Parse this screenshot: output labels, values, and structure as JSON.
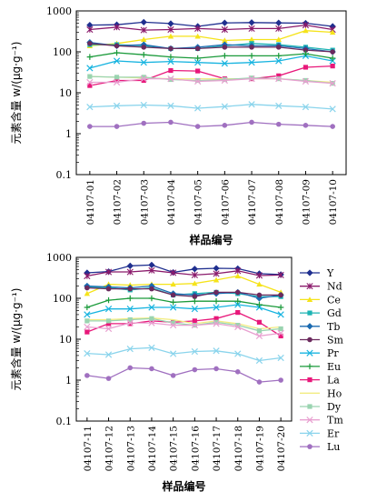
{
  "chart_data": [
    {
      "type": "line",
      "ylabel": "元素含量 w/(μg·g⁻¹)",
      "xlabel": "样品编号",
      "y_scale": "log",
      "ylim": [
        0.1,
        1000
      ],
      "yticks": [
        "0.1",
        "1",
        "10",
        "100",
        "1000"
      ],
      "categories": [
        "04107-01",
        "04107-02",
        "04107-03",
        "04107-04",
        "04107-05",
        "04107-06",
        "04107-07",
        "04107-08",
        "04107-09",
        "04107-10"
      ],
      "series": [
        {
          "name": "Y",
          "color": "#1f2f8f",
          "marker": "diamond",
          "values": [
            450,
            460,
            530,
            490,
            420,
            510,
            520,
            510,
            500,
            420
          ]
        },
        {
          "name": "Nd",
          "color": "#8a1a6b",
          "marker": "star",
          "values": [
            350,
            400,
            340,
            350,
            370,
            350,
            370,
            370,
            450,
            350
          ]
        },
        {
          "name": "Ce",
          "color": "#f5e31a",
          "marker": "triangle",
          "values": [
            140,
            160,
            200,
            240,
            240,
            190,
            200,
            200,
            330,
            300
          ]
        },
        {
          "name": "Gd",
          "color": "#1cb4b4",
          "marker": "square",
          "values": [
            150,
            150,
            140,
            120,
            120,
            140,
            160,
            150,
            130,
            110
          ]
        },
        {
          "name": "Tb",
          "color": "#1a6ab0",
          "marker": "diamond",
          "values": [
            170,
            140,
            150,
            120,
            130,
            150,
            140,
            140,
            120,
            100
          ]
        },
        {
          "name": "Sm",
          "color": "#6b2a5e",
          "marker": "circle",
          "values": [
            160,
            140,
            130,
            120,
            120,
            130,
            130,
            130,
            110,
            100
          ]
        },
        {
          "name": "Pr",
          "color": "#18b4e0",
          "marker": "x",
          "values": [
            40,
            60,
            55,
            58,
            55,
            52,
            55,
            60,
            80,
            60
          ]
        },
        {
          "name": "Eu",
          "color": "#1a9a3a",
          "marker": "plus",
          "values": [
            75,
            95,
            85,
            75,
            70,
            80,
            80,
            80,
            90,
            70
          ]
        },
        {
          "name": "La",
          "color": "#e8187a",
          "marker": "square",
          "values": [
            15,
            20,
            20,
            35,
            34,
            22,
            22,
            26,
            42,
            45
          ]
        },
        {
          "name": "Ho",
          "color": "#f2ec80",
          "marker": "none",
          "values": [
            25,
            24,
            23,
            22,
            22,
            22,
            22,
            22,
            20,
            18
          ]
        },
        {
          "name": "Dy",
          "color": "#9ad4b0",
          "marker": "square",
          "values": [
            25,
            24,
            24,
            21,
            20,
            21,
            23,
            22,
            20,
            17
          ]
        },
        {
          "name": "Tm",
          "color": "#e8a0d0",
          "marker": "x",
          "values": [
            18,
            18,
            22,
            22,
            19,
            20,
            22,
            22,
            19,
            17
          ]
        },
        {
          "name": "Er",
          "color": "#8ad4ec",
          "marker": "x",
          "values": [
            4.5,
            4.8,
            5.0,
            4.8,
            4.2,
            4.6,
            5.2,
            4.8,
            4.5,
            4.0
          ]
        },
        {
          "name": "Lu",
          "color": "#a070c0",
          "marker": "circle",
          "values": [
            1.5,
            1.5,
            1.8,
            1.9,
            1.5,
            1.6,
            1.9,
            1.7,
            1.6,
            1.5
          ]
        }
      ]
    },
    {
      "type": "line",
      "ylabel": "元素含量 w/(μg·g⁻¹)",
      "xlabel": "样品编号",
      "y_scale": "log",
      "ylim": [
        0.1,
        1000
      ],
      "yticks": [
        "0.1",
        "1",
        "10",
        "100",
        "1000"
      ],
      "legend_position": "right",
      "categories": [
        "04107-11",
        "04107-12",
        "04107-13",
        "04107-14",
        "04107-15",
        "04107-16",
        "04107-17",
        "04107-18",
        "04107-19",
        "04107-20"
      ],
      "series": [
        {
          "name": "Y",
          "color": "#1f2f8f",
          "marker": "diamond",
          "values": [
            420,
            450,
            620,
            650,
            430,
            520,
            540,
            530,
            400,
            380
          ]
        },
        {
          "name": "Nd",
          "color": "#8a1a6b",
          "marker": "star",
          "values": [
            350,
            440,
            440,
            480,
            420,
            370,
            400,
            470,
            360,
            370
          ]
        },
        {
          "name": "Ce",
          "color": "#f5e31a",
          "marker": "triangle",
          "values": [
            130,
            220,
            210,
            220,
            220,
            230,
            280,
            350,
            220,
            140
          ]
        },
        {
          "name": "Gd",
          "color": "#1cb4b4",
          "marker": "square",
          "values": [
            190,
            180,
            160,
            180,
            120,
            130,
            140,
            130,
            110,
            110
          ]
        },
        {
          "name": "Tb",
          "color": "#1a6ab0",
          "marker": "diamond",
          "values": [
            200,
            190,
            180,
            200,
            130,
            120,
            130,
            140,
            100,
            120
          ]
        },
        {
          "name": "Sm",
          "color": "#6b2a5e",
          "marker": "circle",
          "values": [
            180,
            170,
            170,
            170,
            120,
            110,
            140,
            140,
            120,
            120
          ]
        },
        {
          "name": "Pr",
          "color": "#18b4e0",
          "marker": "x",
          "values": [
            40,
            55,
            55,
            60,
            60,
            55,
            60,
            70,
            60,
            40
          ]
        },
        {
          "name": "Eu",
          "color": "#1a9a3a",
          "marker": "plus",
          "values": [
            60,
            90,
            100,
            100,
            80,
            85,
            85,
            85,
            70,
            60
          ]
        },
        {
          "name": "La",
          "color": "#e8187a",
          "marker": "square",
          "values": [
            15,
            24,
            24,
            28,
            26,
            28,
            32,
            45,
            26,
            12
          ]
        },
        {
          "name": "Ho",
          "color": "#f2ec80",
          "marker": "none",
          "values": [
            30,
            30,
            32,
            33,
            30,
            24,
            28,
            24,
            18,
            20
          ]
        },
        {
          "name": "Dy",
          "color": "#9ad4b0",
          "marker": "square",
          "values": [
            28,
            28,
            30,
            32,
            25,
            22,
            26,
            22,
            16,
            18
          ]
        },
        {
          "name": "Tm",
          "color": "#e8a0d0",
          "marker": "x",
          "values": [
            20,
            18,
            25,
            25,
            22,
            22,
            24,
            20,
            12,
            14
          ]
        },
        {
          "name": "Er",
          "color": "#8ad4ec",
          "marker": "x",
          "values": [
            4.5,
            4.2,
            5.8,
            6.2,
            4.4,
            5.0,
            5.2,
            4.4,
            3.0,
            3.5
          ]
        },
        {
          "name": "Lu",
          "color": "#a070c0",
          "marker": "circle",
          "values": [
            1.3,
            1.1,
            2.0,
            1.9,
            1.3,
            1.8,
            1.9,
            1.6,
            0.9,
            1.0
          ]
        }
      ]
    }
  ]
}
